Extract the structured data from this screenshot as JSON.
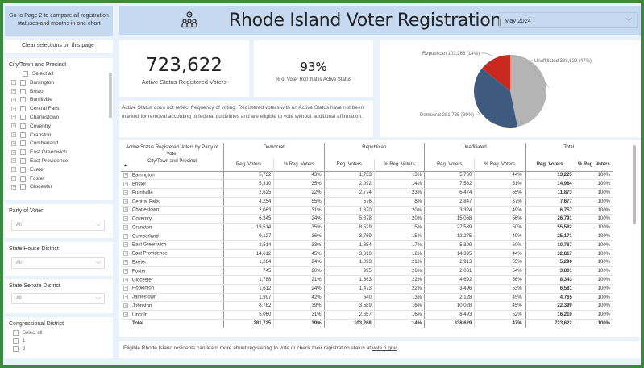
{
  "sidebar": {
    "page2_button": "Go to Page 2 to compare all registration statuses and months in one chart",
    "clear_button": "Clear selections on this page",
    "city_slicer": {
      "title": "City/Town and Precinct",
      "select_all": "Select all",
      "items": [
        "Barrington",
        "Bristol",
        "Burrillville",
        "Central Falls",
        "Charlestown",
        "Coventry",
        "Cranston",
        "Cumberland",
        "East Greenwich",
        "East Providence",
        "Exeter",
        "Foster",
        "Glocester"
      ]
    },
    "party_slicer": {
      "title": "Party of Voter",
      "value": "All"
    },
    "house_slicer": {
      "title": "State House District",
      "value": "All"
    },
    "senate_slicer": {
      "title": "State Senate District",
      "value": "All"
    },
    "congress_slicer": {
      "title": "Congressional District",
      "select_all": "Select all",
      "items": [
        "1",
        "2"
      ]
    }
  },
  "header": {
    "title": "Rhode Island Voter Registration",
    "icon": "voters-check-icon",
    "month": "May 2024"
  },
  "kpis": {
    "active_value": "723,622",
    "active_label": "Active Status Registered Voters",
    "pct_value": "93%",
    "pct_label": "% of Voter Roll that is Active Status"
  },
  "note": "Active Status does not reflect frequency of voting. Registered voters with an Active Status have not been marked for removal according to federal guidelines and are eligible to vote without additional affirmation.",
  "chart_data": {
    "type": "pie",
    "slices": [
      {
        "name": "Unaffiliated",
        "value": 338629,
        "pct": 47,
        "label": "Unaffiliated 338,629 (47%)",
        "color": "#b4b4b4"
      },
      {
        "name": "Democrat",
        "value": 281725,
        "pct": 39,
        "label": "Democrat 281,725 (39%)",
        "color": "#3f5a7f"
      },
      {
        "name": "Republican",
        "value": 103268,
        "pct": 14,
        "label": "Republican 103,268 (14%)",
        "color": "#c8281e"
      }
    ]
  },
  "table": {
    "corner_title": "Active Status Registered Voters by Party of Voter",
    "row_header": "City/Town and Precinct",
    "groups": [
      "Democrat",
      "Republican",
      "Unaffiliated",
      "Total"
    ],
    "sub_headers": [
      "Reg. Voters",
      "% Reg. Voters"
    ],
    "rows": [
      [
        "Barrington",
        "5,732",
        "43%",
        "1,733",
        "13%",
        "5,760",
        "44%",
        "13,225",
        "100%"
      ],
      [
        "Bristol",
        "5,310",
        "35%",
        "2,092",
        "14%",
        "7,582",
        "51%",
        "14,984",
        "100%"
      ],
      [
        "Burrillville",
        "2,625",
        "22%",
        "2,774",
        "23%",
        "6,474",
        "55%",
        "11,873",
        "100%"
      ],
      [
        "Central Falls",
        "4,254",
        "55%",
        "576",
        "8%",
        "2,847",
        "37%",
        "7,677",
        "100%"
      ],
      [
        "Charlestown",
        "2,063",
        "31%",
        "1,370",
        "20%",
        "3,324",
        "49%",
        "6,757",
        "100%"
      ],
      [
        "Coventry",
        "6,345",
        "24%",
        "5,378",
        "20%",
        "15,068",
        "56%",
        "26,791",
        "100%"
      ],
      [
        "Cranston",
        "19,514",
        "35%",
        "8,529",
        "15%",
        "27,539",
        "50%",
        "55,582",
        "100%"
      ],
      [
        "Cumberland",
        "9,127",
        "36%",
        "3,769",
        "15%",
        "12,275",
        "49%",
        "25,171",
        "100%"
      ],
      [
        "East Greenwich",
        "3,514",
        "33%",
        "1,854",
        "17%",
        "5,399",
        "50%",
        "10,767",
        "100%"
      ],
      [
        "East Providence",
        "14,612",
        "45%",
        "3,810",
        "12%",
        "14,395",
        "44%",
        "32,817",
        "100%"
      ],
      [
        "Exeter",
        "1,284",
        "24%",
        "1,093",
        "21%",
        "2,913",
        "55%",
        "5,290",
        "100%"
      ],
      [
        "Foster",
        "745",
        "20%",
        "995",
        "26%",
        "2,061",
        "54%",
        "3,801",
        "100%"
      ],
      [
        "Glocester",
        "1,788",
        "21%",
        "1,863",
        "22%",
        "4,692",
        "56%",
        "8,343",
        "100%"
      ],
      [
        "Hopkinton",
        "1,612",
        "24%",
        "1,473",
        "22%",
        "3,496",
        "53%",
        "6,581",
        "100%"
      ],
      [
        "Jamestown",
        "1,997",
        "42%",
        "640",
        "13%",
        "2,128",
        "45%",
        "4,765",
        "100%"
      ],
      [
        "Johnston",
        "8,782",
        "39%",
        "3,589",
        "16%",
        "10,028",
        "45%",
        "22,399",
        "100%"
      ],
      [
        "Lincoln",
        "5,060",
        "31%",
        "2,657",
        "16%",
        "8,493",
        "52%",
        "16,210",
        "100%"
      ]
    ],
    "total": [
      "Total",
      "281,725",
      "39%",
      "103,268",
      "14%",
      "338,629",
      "47%",
      "723,622",
      "100%"
    ]
  },
  "footer": {
    "text": "Eligible Rhode Island residents can learn more about registering to vote or check their registration status at ",
    "link": "vote.ri.gov"
  }
}
